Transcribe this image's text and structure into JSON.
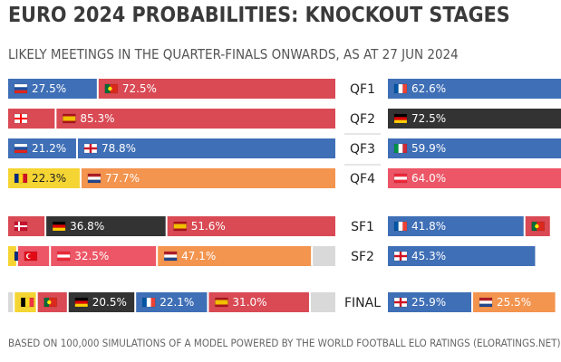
{
  "header": {
    "title": "EURO 2024 PROBABILITIES: KNOCKOUT STAGES",
    "subtitle": "LIKELY MEETINGS IN THE QUARTER-FINALS ONWARDS, AS AT 27 JUN 2024"
  },
  "footer": "BASED ON 100,000 SIMULATIONS OF A MODEL POWERED BY THE WORLD FOOTBALL ELO RATINGS (ELORATINGS.NET)",
  "colors": {
    "slovenia": "#3f6fb6",
    "portugal": "#d94a54",
    "georgia": "#d94a54",
    "spain": "#d94a54",
    "slovakia": "#3f6fb6",
    "england": "#3f6fb6",
    "romania": "#f5d533",
    "netherlands": "#f3944f",
    "denmark": "#d94a54",
    "germany": "#333333",
    "belgium": "#f5d533",
    "turkey": "#ec5666",
    "austria": "#ec5666",
    "france": "#3f6fb6",
    "italy": "#3f6fb6",
    "divider": "#cccccc"
  },
  "chart_data": {
    "type": "bar",
    "orientation": "horizontal-stacked",
    "unit": "%",
    "rows": [
      {
        "stage": "QF1",
        "left": [
          {
            "team": "Slovenia",
            "flag": "slovenia",
            "value": 27.5,
            "label": "27.5%"
          },
          {
            "team": "Portugal",
            "flag": "portugal",
            "value": 72.5,
            "label": "72.5%"
          }
        ],
        "right": [
          {
            "team": "France",
            "flag": "france",
            "value": 62.6,
            "label": "62.6%"
          }
        ]
      },
      {
        "stage": "QF2",
        "left": [
          {
            "team": "Georgia",
            "flag": "georgia",
            "value": 14.7,
            "label": ""
          },
          {
            "team": "Spain",
            "flag": "spain",
            "value": 85.3,
            "label": "85.3%"
          }
        ],
        "right": [
          {
            "team": "Germany",
            "flag": "germany",
            "value": 72.5,
            "label": "72.5%"
          }
        ]
      },
      {
        "stage": "QF3",
        "left": [
          {
            "team": "Slovakia",
            "flag": "slovakia",
            "value": 21.2,
            "label": "21.2%"
          },
          {
            "team": "England",
            "flag": "england",
            "value": 78.8,
            "label": "78.8%"
          }
        ],
        "right": [
          {
            "team": "Italy",
            "flag": "italy",
            "value": 59.9,
            "label": "59.9%"
          }
        ]
      },
      {
        "stage": "QF4",
        "left": [
          {
            "team": "Romania",
            "flag": "romania",
            "value": 22.3,
            "label": "22.3%"
          },
          {
            "team": "Netherlands",
            "flag": "netherlands",
            "value": 77.7,
            "label": "77.7%"
          }
        ],
        "right": [
          {
            "team": "Austria",
            "flag": "austria",
            "value": 64.0,
            "label": "64.0%"
          }
        ]
      },
      {
        "stage": "SF1",
        "left": [
          {
            "team": "Denmark",
            "flag": "denmark",
            "value": 11.6,
            "label": ""
          },
          {
            "team": "Germany",
            "flag": "germany",
            "value": 36.8,
            "label": "36.8%"
          },
          {
            "team": "Spain",
            "flag": "spain",
            "value": 51.6,
            "label": "51.6%"
          }
        ],
        "right": [
          {
            "team": "France",
            "flag": "france",
            "value": 41.8,
            "label": "41.8%"
          },
          {
            "team": "Portugal",
            "flag": "portugal",
            "value": 8.0,
            "label": ""
          }
        ]
      },
      {
        "stage": "SF2",
        "left": [
          {
            "team": "Romania",
            "flag": "romania",
            "value": 3.0,
            "label": ""
          },
          {
            "team": "Turkey",
            "flag": "turkey",
            "value": 10.0,
            "label": ""
          },
          {
            "team": "Austria",
            "flag": "austria",
            "value": 32.5,
            "label": "32.5%"
          },
          {
            "team": "Netherlands",
            "flag": "netherlands",
            "value": 47.1,
            "label": "47.1%"
          },
          {
            "team": "Other",
            "flag": "",
            "value": 7.4,
            "label": ""
          }
        ],
        "right": [
          {
            "team": "England",
            "flag": "england",
            "value": 45.3,
            "label": "45.3%"
          }
        ]
      },
      {
        "stage": "FINAL",
        "left": [
          {
            "team": "Other",
            "flag": "",
            "value": 2.0,
            "label": ""
          },
          {
            "team": "Belgium",
            "flag": "belgium",
            "value": 7.0,
            "label": ""
          },
          {
            "team": "Portugal",
            "flag": "portugal",
            "value": 9.4,
            "label": ""
          },
          {
            "team": "Germany",
            "flag": "germany",
            "value": 20.5,
            "label": "20.5%"
          },
          {
            "team": "France",
            "flag": "france",
            "value": 22.1,
            "label": "22.1%"
          },
          {
            "team": "Spain",
            "flag": "spain",
            "value": 31.0,
            "label": "31.0%"
          },
          {
            "team": "Other",
            "flag": "",
            "value": 8.0,
            "label": ""
          }
        ],
        "right": [
          {
            "team": "England",
            "flag": "england",
            "value": 25.9,
            "label": "25.9%"
          },
          {
            "team": "Netherlands",
            "flag": "netherlands",
            "value": 25.5,
            "label": "25.5%"
          }
        ]
      }
    ]
  }
}
